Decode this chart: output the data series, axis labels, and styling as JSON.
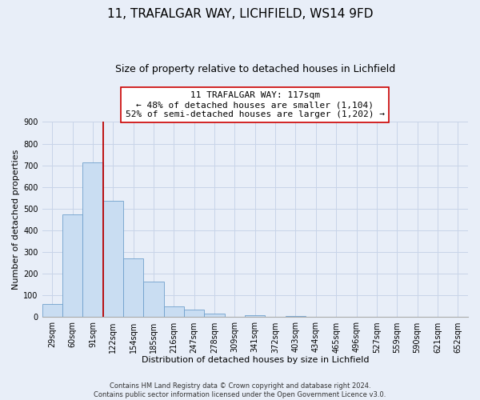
{
  "title": "11, TRAFALGAR WAY, LICHFIELD, WS14 9FD",
  "subtitle": "Size of property relative to detached houses in Lichfield",
  "xlabel": "Distribution of detached houses by size in Lichfield",
  "ylabel": "Number of detached properties",
  "bar_labels": [
    "29sqm",
    "60sqm",
    "91sqm",
    "122sqm",
    "154sqm",
    "185sqm",
    "216sqm",
    "247sqm",
    "278sqm",
    "309sqm",
    "341sqm",
    "372sqm",
    "403sqm",
    "434sqm",
    "465sqm",
    "496sqm",
    "527sqm",
    "559sqm",
    "590sqm",
    "621sqm",
    "652sqm"
  ],
  "bar_values": [
    60,
    475,
    715,
    535,
    270,
    163,
    48,
    35,
    15,
    0,
    8,
    0,
    5,
    0,
    0,
    0,
    0,
    0,
    0,
    0,
    0
  ],
  "bar_color": "#c9ddf2",
  "bar_edge_color": "#6fa0cc",
  "vline_x": 2.5,
  "vline_color": "#bb0000",
  "annotation_line1": "11 TRAFALGAR WAY: 117sqm",
  "annotation_line2": "← 48% of detached houses are smaller (1,104)",
  "annotation_line3": "52% of semi-detached houses are larger (1,202) →",
  "annotation_box_color": "#ffffff",
  "annotation_box_edge": "#cc0000",
  "ylim": [
    0,
    900
  ],
  "yticks": [
    0,
    100,
    200,
    300,
    400,
    500,
    600,
    700,
    800,
    900
  ],
  "grid_color": "#c8d4e8",
  "footnote": "Contains HM Land Registry data © Crown copyright and database right 2024.\nContains public sector information licensed under the Open Government Licence v3.0.",
  "bg_color": "#e8eef8",
  "title_fontsize": 11,
  "subtitle_fontsize": 9,
  "annot_fontsize": 8,
  "tick_fontsize": 7,
  "axis_label_fontsize": 8,
  "footnote_fontsize": 6
}
